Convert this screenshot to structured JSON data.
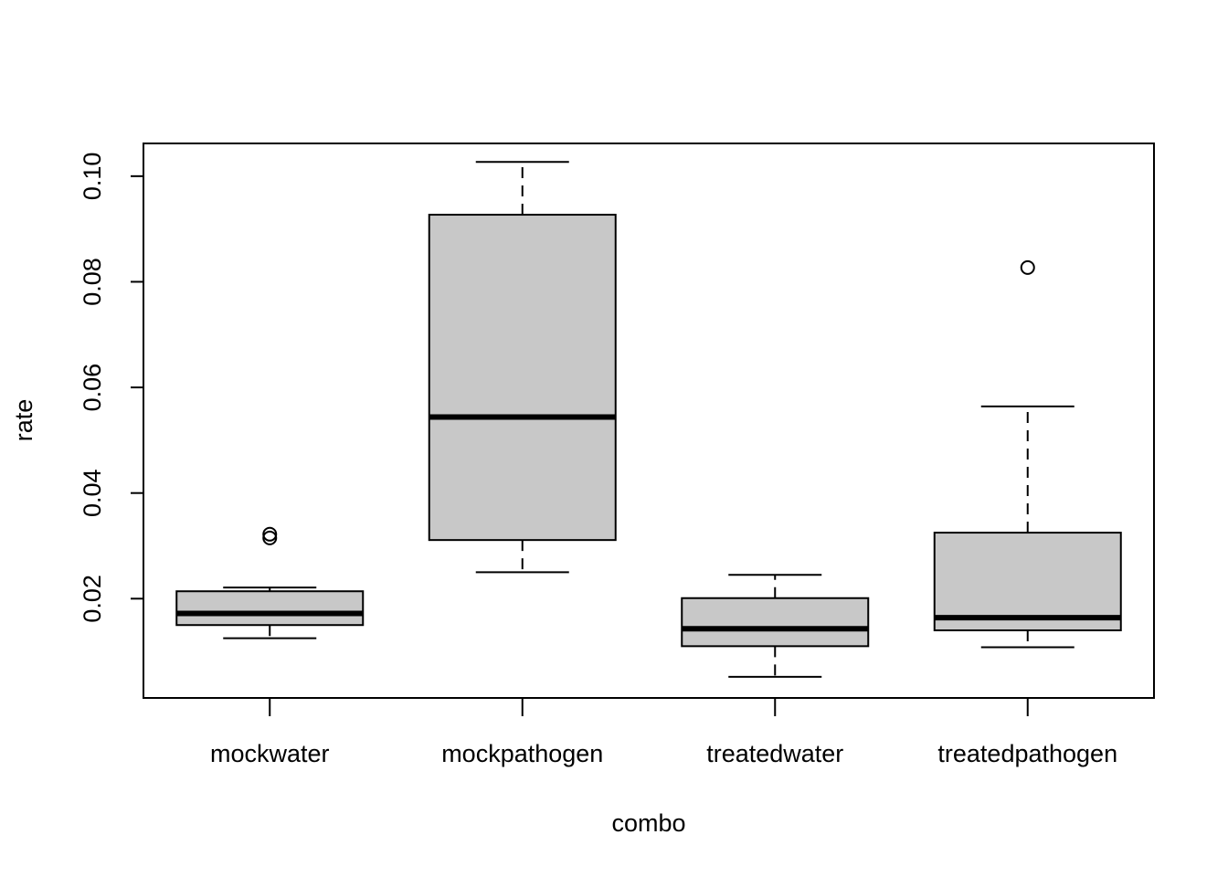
{
  "chart_data": {
    "type": "boxplot",
    "title": "",
    "xlabel": "combo",
    "ylabel": "rate",
    "ylim": [
      0.0012,
      0.1062
    ],
    "yticks": [
      "0.02",
      "0.04",
      "0.06",
      "0.08",
      "0.10"
    ],
    "grid": false,
    "legend": "none",
    "box_fill": "#c8c8c8",
    "categories": [
      "mockwater",
      "mockpathogen",
      "treatedwater",
      "treatedpathogen"
    ],
    "boxes": [
      {
        "category": "mockwater",
        "whisker_low": 0.0125,
        "q1": 0.015,
        "median": 0.0172,
        "q3": 0.0214,
        "whisker_high": 0.0221,
        "outliers": [
          0.0315,
          0.0322
        ]
      },
      {
        "category": "mockpathogen",
        "whisker_low": 0.025,
        "q1": 0.0311,
        "median": 0.0544,
        "q3": 0.0927,
        "whisker_high": 0.1027,
        "outliers": []
      },
      {
        "category": "treatedwater",
        "whisker_low": 0.0052,
        "q1": 0.011,
        "median": 0.0143,
        "q3": 0.0201,
        "whisker_high": 0.0245,
        "outliers": []
      },
      {
        "category": "treatedpathogen",
        "whisker_low": 0.0108,
        "q1": 0.014,
        "median": 0.0164,
        "q3": 0.0325,
        "whisker_high": 0.0564,
        "outliers": [
          0.0827
        ]
      }
    ]
  }
}
